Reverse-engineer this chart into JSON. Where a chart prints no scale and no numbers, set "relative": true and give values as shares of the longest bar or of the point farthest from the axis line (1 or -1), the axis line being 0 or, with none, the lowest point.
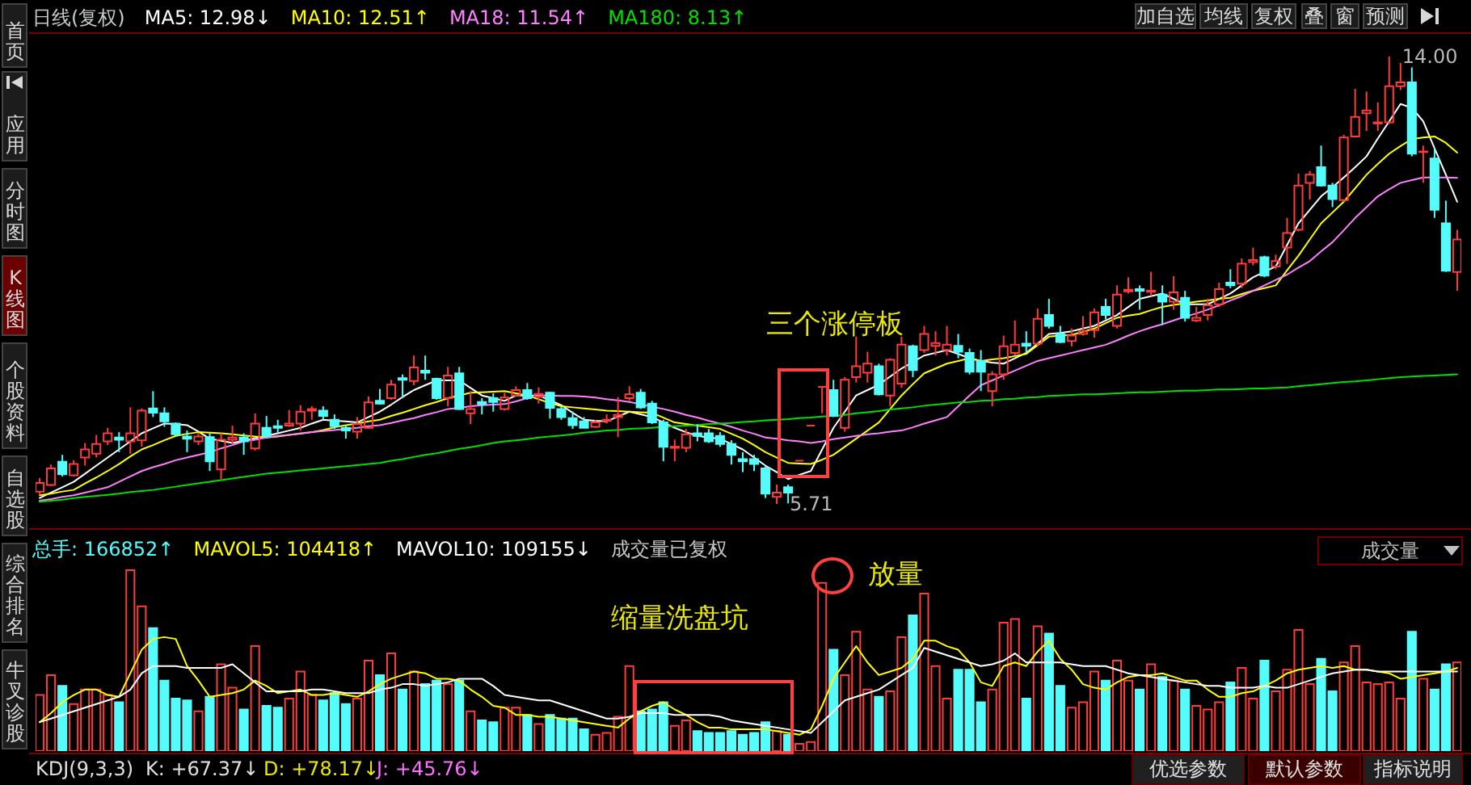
{
  "chart_data": [
    {
      "type": "candlestick",
      "title": "日线(复权)",
      "categories": [
        null,
        null,
        null,
        null,
        null,
        null,
        null,
        null,
        null,
        null,
        null,
        null,
        null,
        null,
        null,
        null,
        null,
        null,
        null,
        null,
        null,
        null,
        null,
        null,
        null,
        null,
        null,
        null,
        null,
        null,
        null,
        null,
        null,
        null,
        null,
        null,
        null,
        null,
        null,
        null,
        null,
        null,
        null,
        null,
        null,
        null,
        null,
        null,
        null,
        null,
        null,
        null,
        null,
        null,
        null,
        null,
        null,
        null,
        null,
        null,
        null,
        null,
        null,
        null,
        null,
        null,
        null,
        null,
        null,
        null,
        null,
        null,
        null,
        null,
        null,
        null,
        null,
        null,
        null,
        null,
        null,
        null,
        null,
        null,
        null,
        null,
        null,
        null,
        null,
        null,
        null,
        null,
        null,
        null,
        null,
        null,
        null,
        null,
        null,
        null,
        null,
        null,
        null,
        null,
        null,
        null,
        null,
        null,
        null,
        null,
        null,
        null,
        null,
        null,
        null,
        null,
        null,
        null,
        null,
        null,
        null,
        null,
        null,
        null,
        null,
        null
      ],
      "ohlc": [
        [
          5.94,
          6.19,
          5.87,
          6.1
        ],
        [
          6.06,
          6.44,
          6.04,
          6.37
        ],
        [
          6.49,
          6.62,
          6.22,
          6.26
        ],
        [
          6.24,
          6.52,
          6.22,
          6.45
        ],
        [
          6.57,
          6.84,
          6.42,
          6.72
        ],
        [
          6.64,
          6.99,
          6.57,
          6.82
        ],
        [
          6.87,
          7.12,
          6.8,
          7.02
        ],
        [
          6.94,
          7.04,
          6.67,
          6.9
        ],
        [
          6.87,
          7.5,
          6.64,
          7.02
        ],
        [
          6.89,
          7.48,
          6.77,
          7.44
        ],
        [
          7.48,
          7.8,
          7.32,
          7.4
        ],
        [
          7.39,
          7.5,
          7.14,
          7.24
        ],
        [
          7.2,
          7.22,
          6.97,
          7.0
        ],
        [
          6.96,
          7.07,
          6.67,
          6.92
        ],
        [
          6.87,
          7.02,
          6.8,
          6.96
        ],
        [
          6.95,
          7.02,
          6.32,
          6.5
        ],
        [
          6.35,
          7.02,
          6.17,
          6.9
        ],
        [
          6.9,
          7.16,
          6.82,
          6.94
        ],
        [
          6.94,
          7.02,
          6.62,
          6.87
        ],
        [
          6.74,
          7.39,
          6.7,
          7.2
        ],
        [
          7.12,
          7.34,
          6.94,
          6.97
        ],
        [
          7.15,
          7.27,
          7.02,
          7.12
        ],
        [
          7.16,
          7.45,
          7.14,
          7.2
        ],
        [
          7.2,
          7.54,
          7.07,
          7.42
        ],
        [
          7.44,
          7.52,
          7.27,
          7.47
        ],
        [
          7.44,
          7.52,
          7.27,
          7.34
        ],
        [
          7.27,
          7.37,
          7.1,
          7.15
        ],
        [
          7.12,
          7.17,
          6.92,
          7.07
        ],
        [
          7.05,
          7.32,
          6.92,
          7.19
        ],
        [
          7.12,
          7.7,
          7.1,
          7.59
        ],
        [
          7.62,
          7.84,
          7.55,
          7.57
        ],
        [
          7.67,
          8.01,
          7.64,
          7.92
        ],
        [
          8.04,
          8.11,
          7.67,
          8.01
        ],
        [
          7.99,
          8.46,
          7.91,
          8.24
        ],
        [
          8.18,
          8.46,
          8.01,
          8.14
        ],
        [
          8.03,
          8.05,
          7.64,
          7.67
        ],
        [
          7.67,
          8.25,
          7.52,
          8.09
        ],
        [
          8.13,
          8.25,
          7.45,
          7.47
        ],
        [
          7.39,
          7.8,
          7.19,
          7.47
        ],
        [
          7.6,
          7.67,
          7.37,
          7.56
        ],
        [
          7.67,
          7.76,
          7.42,
          7.6
        ],
        [
          7.47,
          7.77,
          7.44,
          7.68
        ],
        [
          7.72,
          7.89,
          7.7,
          7.82
        ],
        [
          7.82,
          7.95,
          7.64,
          7.67
        ],
        [
          7.7,
          7.87,
          7.57,
          7.75
        ],
        [
          7.77,
          7.79,
          7.29,
          7.49
        ],
        [
          7.47,
          7.52,
          7.27,
          7.32
        ],
        [
          7.3,
          7.42,
          7.1,
          7.17
        ],
        [
          7.24,
          7.32,
          7.12,
          7.12
        ],
        [
          7.14,
          7.26,
          7.12,
          7.22
        ],
        [
          7.25,
          7.37,
          7.2,
          7.27
        ],
        [
          7.32,
          7.69,
          6.95,
          7.36
        ],
        [
          7.67,
          7.89,
          7.62,
          7.74
        ],
        [
          7.77,
          7.84,
          7.47,
          7.5
        ],
        [
          7.57,
          7.62,
          7.19,
          7.22
        ],
        [
          7.22,
          7.27,
          6.5,
          6.77
        ],
        [
          6.75,
          6.9,
          6.5,
          6.77
        ],
        [
          6.75,
          7.1,
          6.67,
          7.0
        ],
        [
          7.02,
          7.19,
          6.87,
          6.97
        ],
        [
          7.02,
          7.1,
          6.84,
          6.87
        ],
        [
          6.97,
          7.04,
          6.77,
          6.82
        ],
        [
          6.82,
          6.89,
          6.44,
          6.62
        ],
        [
          6.54,
          6.67,
          6.3,
          6.5
        ],
        [
          6.54,
          6.62,
          6.32,
          6.45
        ],
        [
          6.37,
          6.42,
          5.82,
          5.9
        ],
        [
          5.84,
          6.07,
          5.71,
          5.92
        ],
        [
          6.02,
          6.07,
          5.72,
          5.92
        ],
        [
          6.51,
          6.51,
          6.51,
          6.51
        ],
        [
          7.16,
          7.16,
          7.16,
          7.16
        ],
        [
          7.88,
          7.88,
          7.39,
          7.88
        ],
        [
          7.82,
          8.01,
          7.32,
          7.34
        ],
        [
          7.12,
          8.06,
          7.05,
          8.01
        ],
        [
          8.06,
          8.81,
          7.96,
          8.26
        ],
        [
          8.14,
          8.53,
          7.96,
          8.31
        ],
        [
          8.26,
          8.31,
          7.72,
          7.74
        ],
        [
          7.72,
          8.41,
          7.52,
          8.38
        ],
        [
          7.94,
          8.81,
          7.86,
          8.66
        ],
        [
          8.63,
          8.66,
          8.06,
          8.19
        ],
        [
          8.56,
          9.01,
          8.51,
          8.86
        ],
        [
          8.64,
          8.91,
          8.46,
          8.69
        ],
        [
          8.56,
          9.01,
          8.46,
          8.66
        ],
        [
          8.64,
          8.86,
          8.41,
          8.53
        ],
        [
          8.51,
          8.59,
          8.11,
          8.16
        ],
        [
          8.36,
          8.56,
          7.8,
          8.16
        ],
        [
          7.8,
          8.17,
          7.52,
          8.11
        ],
        [
          8.11,
          8.83,
          8.01,
          8.63
        ],
        [
          8.51,
          9.11,
          8.46,
          8.66
        ],
        [
          8.68,
          8.91,
          8.51,
          8.64
        ],
        [
          8.68,
          9.33,
          8.64,
          9.14
        ],
        [
          9.21,
          9.51,
          8.96,
          9.01
        ],
        [
          8.86,
          9.01,
          8.69,
          8.71
        ],
        [
          8.73,
          8.96,
          8.63,
          8.83
        ],
        [
          8.86,
          9.19,
          8.83,
          8.91
        ],
        [
          8.93,
          9.33,
          8.79,
          9.26
        ],
        [
          9.36,
          9.51,
          9.13,
          9.21
        ],
        [
          9.01,
          9.76,
          8.96,
          9.59
        ],
        [
          9.65,
          9.91,
          9.61,
          9.68
        ],
        [
          9.69,
          9.76,
          9.31,
          9.66
        ],
        [
          9.64,
          10.01,
          9.56,
          9.66
        ],
        [
          9.59,
          9.76,
          9.03,
          9.46
        ],
        [
          9.46,
          9.93,
          9.31,
          9.63
        ],
        [
          9.53,
          9.66,
          9.09,
          9.16
        ],
        [
          9.11,
          9.36,
          9.08,
          9.16
        ],
        [
          9.21,
          9.51,
          9.11,
          9.39
        ],
        [
          9.41,
          9.81,
          9.36,
          9.69
        ],
        [
          9.81,
          10.06,
          9.71,
          9.76
        ],
        [
          9.79,
          10.26,
          9.71,
          10.16
        ],
        [
          10.19,
          10.46,
          10.13,
          10.23
        ],
        [
          10.28,
          10.31,
          9.91,
          9.94
        ],
        [
          10.11,
          10.33,
          10.06,
          10.21
        ],
        [
          10.46,
          11.01,
          10.16,
          10.73
        ],
        [
          10.79,
          11.83,
          10.76,
          11.61
        ],
        [
          11.66,
          11.88,
          11.35,
          11.81
        ],
        [
          11.95,
          12.35,
          11.59,
          11.61
        ],
        [
          11.61,
          11.66,
          11.21,
          11.36
        ],
        [
          11.34,
          12.55,
          11.31,
          12.5
        ],
        [
          12.52,
          13.4,
          12.5,
          12.88
        ],
        [
          12.95,
          13.35,
          12.62,
          13.0
        ],
        [
          12.76,
          13.15,
          12.62,
          12.78
        ],
        [
          12.78,
          14.0,
          12.75,
          13.45
        ],
        [
          13.45,
          13.88,
          13.38,
          13.52
        ],
        [
          13.52,
          13.8,
          12.15,
          12.2
        ],
        [
          12.23,
          12.35,
          11.66,
          12.24
        ],
        [
          12.11,
          12.3,
          11.01,
          11.16
        ],
        [
          10.91,
          11.33,
          10.01,
          10.03
        ],
        [
          10.01,
          10.79,
          9.66,
          10.61
        ]
      ],
      "series": [
        {
          "name": "MA5: 12.98↓",
          "type": "line",
          "color": "#ffffff",
          "values": [
            5.82,
            5.92,
            6.02,
            6.12,
            6.27,
            6.42,
            6.57,
            6.72,
            6.87,
            7.02,
            7.11,
            7.2,
            7.19,
            7.17,
            7.05,
            6.92,
            6.88,
            6.84,
            6.88,
            6.93,
            6.97,
            7.02,
            7.07,
            7.12,
            7.2,
            7.27,
            7.25,
            7.24,
            7.22,
            7.32,
            7.42,
            7.55,
            7.69,
            7.82,
            7.91,
            8.0,
            8.0,
            8.0,
            7.86,
            7.72,
            7.67,
            7.62,
            7.72,
            7.72,
            7.72,
            7.63,
            7.54,
            7.4,
            7.27,
            7.25,
            7.24,
            7.33,
            7.42,
            7.37,
            7.32,
            7.22,
            7.12,
            7.04,
            6.97,
            6.94,
            6.92,
            6.82,
            6.72,
            6.57,
            6.42,
            6.3,
            6.17,
            6.25,
            6.32,
            6.72,
            7.12,
            7.42,
            7.72,
            7.82,
            7.92,
            8.07,
            8.22,
            8.34,
            8.46,
            8.51,
            8.56,
            8.49,
            8.41,
            8.36,
            8.33,
            8.31,
            8.41,
            8.51,
            8.68,
            8.86,
            8.88,
            8.91,
            8.96,
            9.01,
            9.11,
            9.21,
            9.36,
            9.51,
            9.56,
            9.61,
            9.51,
            9.41,
            9.41,
            9.41,
            9.51,
            9.61,
            9.76,
            9.91,
            10.01,
            10.11,
            10.51,
            10.91,
            11.16,
            11.41,
            11.58,
            11.76,
            11.95,
            12.15,
            12.48,
            12.8,
            13.12,
            13.05,
            12.8,
            12.3,
            11.81,
            11.31
          ]
        },
        {
          "name": "MA10: 12.51↑",
          "type": "line",
          "color": "#ffff00",
          "values": [
            5.87,
            5.9,
            5.94,
            5.97,
            6.09,
            6.2,
            6.32,
            6.45,
            6.59,
            6.72,
            6.8,
            6.89,
            6.97,
            7.01,
            7.04,
            7.03,
            7.02,
            7.0,
            6.98,
            6.96,
            6.94,
            6.96,
            6.99,
            7.01,
            7.04,
            7.08,
            7.13,
            7.17,
            7.2,
            7.24,
            7.27,
            7.34,
            7.4,
            7.47,
            7.54,
            7.6,
            7.67,
            7.72,
            7.77,
            7.78,
            7.79,
            7.8,
            7.76,
            7.72,
            7.65,
            7.58,
            7.52,
            7.5,
            7.48,
            7.46,
            7.44,
            7.43,
            7.42,
            7.41,
            7.4,
            7.31,
            7.22,
            7.19,
            7.16,
            7.13,
            7.1,
            7.01,
            6.92,
            6.8,
            6.67,
            6.57,
            6.47,
            6.46,
            6.45,
            6.53,
            6.62,
            6.77,
            6.92,
            7.07,
            7.22,
            7.47,
            7.72,
            7.93,
            8.13,
            8.22,
            8.31,
            8.36,
            8.41,
            8.36,
            8.39,
            8.41,
            8.45,
            8.49,
            8.65,
            8.81,
            8.83,
            8.84,
            8.9,
            8.96,
            9.06,
            9.16,
            9.2,
            9.23,
            9.3,
            9.36,
            9.4,
            9.43,
            9.46,
            9.48,
            9.51,
            9.53,
            9.6,
            9.66,
            9.71,
            9.76,
            10.04,
            10.31,
            10.61,
            10.91,
            11.11,
            11.31,
            11.56,
            11.81,
            12.01,
            12.2,
            12.34,
            12.47,
            12.5,
            12.52,
            12.4,
            12.22
          ]
        },
        {
          "name": "MA18: 11.54↑",
          "type": "line",
          "color": "#ff80ff",
          "values": [
            5.77,
            5.8,
            5.84,
            5.87,
            5.92,
            5.97,
            6.02,
            6.12,
            6.22,
            6.32,
            6.39,
            6.45,
            6.52,
            6.57,
            6.62,
            6.67,
            6.74,
            6.8,
            6.87,
            6.9,
            6.94,
            6.97,
            6.99,
            7.02,
            7.04,
            7.06,
            7.08,
            7.1,
            7.12,
            7.15,
            7.17,
            7.21,
            7.26,
            7.3,
            7.36,
            7.41,
            7.47,
            7.49,
            7.52,
            7.54,
            7.55,
            7.56,
            7.61,
            7.67,
            7.72,
            7.72,
            7.71,
            7.71,
            7.7,
            7.68,
            7.65,
            7.63,
            7.6,
            7.56,
            7.51,
            7.47,
            7.42,
            7.36,
            7.31,
            7.25,
            7.2,
            7.14,
            7.07,
            7.01,
            6.94,
            6.92,
            6.89,
            6.87,
            6.84,
            6.87,
            6.91,
            6.94,
            6.97,
            7.0,
            7.02,
            7.05,
            7.07,
            7.13,
            7.2,
            7.26,
            7.32,
            7.52,
            7.72,
            7.91,
            8.0,
            8.09,
            8.18,
            8.27,
            8.36,
            8.41,
            8.46,
            8.51,
            8.56,
            8.61,
            8.66,
            8.74,
            8.83,
            8.91,
            8.98,
            9.04,
            9.11,
            9.18,
            9.24,
            9.31,
            9.39,
            9.48,
            9.56,
            9.66,
            9.76,
            9.86,
            9.96,
            10.09,
            10.21,
            10.39,
            10.56,
            10.78,
            11.01,
            11.21,
            11.41,
            11.54,
            11.66,
            11.71,
            11.76,
            11.76,
            11.76,
            11.75
          ]
        },
        {
          "name": "MA180: 8.13↑",
          "type": "line",
          "color": "#00e000",
          "values": [
            5.75,
            5.77,
            5.79,
            5.82,
            5.84,
            5.86,
            5.88,
            5.9,
            5.93,
            5.95,
            5.97,
            6.0,
            6.03,
            6.06,
            6.09,
            6.12,
            6.15,
            6.18,
            6.21,
            6.24,
            6.27,
            6.29,
            6.31,
            6.33,
            6.35,
            6.37,
            6.39,
            6.41,
            6.43,
            6.45,
            6.47,
            6.51,
            6.54,
            6.58,
            6.62,
            6.65,
            6.69,
            6.73,
            6.76,
            6.8,
            6.84,
            6.87,
            6.89,
            6.91,
            6.94,
            6.96,
            6.98,
            7.0,
            7.03,
            7.05,
            7.07,
            7.08,
            7.1,
            7.11,
            7.12,
            7.14,
            7.15,
            7.16,
            7.17,
            7.19,
            7.2,
            7.21,
            7.23,
            7.24,
            7.26,
            7.27,
            7.28,
            7.3,
            7.31,
            7.33,
            7.34,
            7.36,
            7.39,
            7.41,
            7.43,
            7.46,
            7.48,
            7.5,
            7.53,
            7.55,
            7.57,
            7.59,
            7.6,
            7.62,
            7.63,
            7.65,
            7.66,
            7.68,
            7.69,
            7.71,
            7.72,
            7.73,
            7.74,
            7.74,
            7.75,
            7.76,
            7.77,
            7.78,
            7.78,
            7.79,
            7.8,
            7.81,
            7.81,
            7.82,
            7.83,
            7.83,
            7.84,
            7.85,
            7.85,
            7.86,
            7.87,
            7.89,
            7.91,
            7.93,
            7.95,
            7.97,
            7.98,
            8.0,
            8.02,
            8.04,
            8.06,
            8.07,
            8.08,
            8.09,
            8.1,
            8.11
          ]
        }
      ],
      "annotations": [
        "14.00",
        "5.71",
        "三个涨停板"
      ]
    },
    {
      "type": "bar",
      "relative": true,
      "categories": [
        null,
        null,
        null,
        null,
        null,
        null,
        null,
        null,
        null,
        null,
        null,
        null,
        null,
        null,
        null,
        null,
        null,
        null,
        null,
        null,
        null,
        null,
        null,
        null,
        null,
        null,
        null,
        null,
        null,
        null,
        null,
        null,
        null,
        null,
        null,
        null,
        null,
        null,
        null,
        null,
        null,
        null,
        null,
        null,
        null,
        null,
        null,
        null,
        null,
        null,
        null,
        null,
        null,
        null,
        null,
        null,
        null,
        null,
        null,
        null,
        null,
        null,
        null,
        null,
        null,
        null,
        null,
        null,
        null,
        null,
        null,
        null,
        null,
        null,
        null,
        null,
        null,
        null,
        null,
        null,
        null,
        null,
        null,
        null,
        null,
        null,
        null,
        null,
        null,
        null,
        null,
        null,
        null,
        null,
        null,
        null,
        null,
        null,
        null,
        null,
        null,
        null,
        null,
        null,
        null,
        null,
        null,
        null,
        null,
        null,
        null,
        null,
        null,
        null,
        null,
        null,
        null,
        null,
        null,
        null,
        null,
        null,
        null,
        null,
        null,
        null
      ],
      "values": [
        0.31,
        0.42,
        0.36,
        0.26,
        0.34,
        0.34,
        0.31,
        0.27,
        1,
        0.8,
        0.68,
        0.39,
        0.29,
        0.28,
        0.22,
        0.3,
        0.48,
        0.35,
        0.23,
        0.58,
        0.25,
        0.24,
        0.29,
        0.44,
        0.31,
        0.28,
        0.32,
        0.26,
        0.29,
        0.5,
        0.42,
        0.54,
        0.34,
        0.44,
        0.37,
        0.39,
        0.37,
        0.39,
        0.22,
        0.17,
        0.16,
        0.24,
        0.24,
        0.2,
        0.15,
        0.2,
        0.18,
        0.18,
        0.12,
        0.09,
        0.1,
        0.19,
        0.47,
        0.22,
        0.23,
        0.27,
        0.14,
        0.17,
        0.11,
        0.1,
        0.1,
        0.11,
        0.09,
        0.1,
        0.16,
        0.11,
        0.09,
        0.04,
        0.05,
        0.93,
        0.56,
        0.42,
        0.66,
        0.34,
        0.3,
        0.33,
        0.63,
        0.75,
        0.87,
        0.47,
        0.29,
        0.45,
        0.45,
        0.27,
        0.34,
        0.71,
        0.73,
        0.29,
        0.69,
        0.65,
        0.36,
        0.24,
        0.27,
        0.44,
        0.39,
        0.5,
        0.39,
        0.34,
        0.48,
        0.41,
        0.39,
        0.34,
        0.25,
        0.23,
        0.27,
        0.38,
        0.46,
        0.29,
        0.5,
        0.33,
        0.45,
        0.67,
        0.37,
        0.51,
        0.33,
        0.49,
        0.58,
        0.38,
        0.37,
        0.38,
        0.29,
        0.66,
        0.4,
        0.34,
        0.48,
        0.49
      ],
      "colors": [
        "#ff3c3c",
        "#ff3c3c",
        "#54fcfc",
        "#ff3c3c",
        "#ff3c3c",
        "#ff3c3c",
        "#ff3c3c",
        "#54fcfc",
        "#ff3c3c",
        "#ff3c3c",
        "#54fcfc",
        "#54fcfc",
        "#54fcfc",
        "#54fcfc",
        "#ff3c3c",
        "#54fcfc",
        "#ff3c3c",
        "#ff3c3c",
        "#54fcfc",
        "#ff3c3c",
        "#54fcfc",
        "#54fcfc",
        "#ff3c3c",
        "#ff3c3c",
        "#ff3c3c",
        "#54fcfc",
        "#54fcfc",
        "#54fcfc",
        "#ff3c3c",
        "#ff3c3c",
        "#54fcfc",
        "#ff3c3c",
        "#54fcfc",
        "#ff3c3c",
        "#54fcfc",
        "#54fcfc",
        "#ff3c3c",
        "#54fcfc",
        "#ff3c3c",
        "#54fcfc",
        "#54fcfc",
        "#ff3c3c",
        "#ff3c3c",
        "#54fcfc",
        "#ff3c3c",
        "#54fcfc",
        "#54fcfc",
        "#54fcfc",
        "#54fcfc",
        "#ff3c3c",
        "#ff3c3c",
        "#ff3c3c",
        "#ff3c3c",
        "#54fcfc",
        "#54fcfc",
        "#54fcfc",
        "#ff3c3c",
        "#ff3c3c",
        "#54fcfc",
        "#54fcfc",
        "#54fcfc",
        "#54fcfc",
        "#54fcfc",
        "#54fcfc",
        "#54fcfc",
        "#ff3c3c",
        "#54fcfc",
        "#ff3c3c",
        "#ff3c3c",
        "#ff3c3c",
        "#54fcfc",
        "#ff3c3c",
        "#ff3c3c",
        "#ff3c3c",
        "#54fcfc",
        "#ff3c3c",
        "#ff3c3c",
        "#54fcfc",
        "#ff3c3c",
        "#ff3c3c",
        "#ff3c3c",
        "#54fcfc",
        "#54fcfc",
        "#54fcfc",
        "#ff3c3c",
        "#ff3c3c",
        "#ff3c3c",
        "#54fcfc",
        "#ff3c3c",
        "#54fcfc",
        "#54fcfc",
        "#ff3c3c",
        "#ff3c3c",
        "#ff3c3c",
        "#54fcfc",
        "#ff3c3c",
        "#ff3c3c",
        "#54fcfc",
        "#ff3c3c",
        "#54fcfc",
        "#ff3c3c",
        "#54fcfc",
        "#ff3c3c",
        "#ff3c3c",
        "#ff3c3c",
        "#54fcfc",
        "#ff3c3c",
        "#ff3c3c",
        "#54fcfc",
        "#ff3c3c",
        "#ff3c3c",
        "#ff3c3c",
        "#ff3c3c",
        "#54fcfc",
        "#54fcfc",
        "#ff3c3c",
        "#ff3c3c",
        "#ff3c3c",
        "#ff3c3c",
        "#ff3c3c",
        "#ff3c3c",
        "#54fcfc",
        "#ff3c3c",
        "#54fcfc",
        "#54fcfc",
        "#ff3c3c"
      ],
      "series": [
        {
          "name": "MAVOL5: 104418↑",
          "type": "line",
          "color": "#ffff00",
          "values": [
            0.16,
            0.21,
            0.27,
            0.31,
            0.34,
            0.34,
            0.31,
            0.3,
            0.43,
            0.56,
            0.62,
            0.63,
            0.62,
            0.47,
            0.39,
            0.3,
            0.31,
            0.32,
            0.34,
            0.39,
            0.36,
            0.32,
            0.33,
            0.34,
            0.31,
            0.31,
            0.32,
            0.31,
            0.3,
            0.33,
            0.37,
            0.4,
            0.42,
            0.44,
            0.43,
            0.4,
            0.4,
            0.39,
            0.34,
            0.3,
            0.25,
            0.24,
            0.2,
            0.2,
            0.19,
            0.19,
            0.18,
            0.17,
            0.16,
            0.15,
            0.14,
            0.13,
            0.18,
            0.22,
            0.25,
            0.27,
            0.23,
            0.2,
            0.16,
            0.13,
            0.13,
            0.12,
            0.12,
            0.12,
            0.12,
            0.11,
            0.1,
            0.09,
            0.12,
            0.25,
            0.4,
            0.49,
            0.58,
            0.49,
            0.42,
            0.44,
            0.46,
            0.51,
            0.61,
            0.61,
            0.58,
            0.56,
            0.49,
            0.38,
            0.36,
            0.47,
            0.49,
            0.47,
            0.55,
            0.61,
            0.51,
            0.45,
            0.37,
            0.35,
            0.34,
            0.38,
            0.41,
            0.42,
            0.42,
            0.43,
            0.41,
            0.39,
            0.39,
            0.34,
            0.3,
            0.3,
            0.32,
            0.33,
            0.36,
            0.39,
            0.43,
            0.45,
            0.46,
            0.47,
            0.46,
            0.47,
            0.45,
            0.45,
            0.44,
            0.43,
            0.4,
            0.41,
            0.42,
            0.43,
            0.44,
            0.46
          ]
        },
        {
          "name": "MAVOL10: 109155↓",
          "type": "line",
          "color": "#ffffff",
          "values": [
            0.16,
            0.18,
            0.2,
            0.22,
            0.24,
            0.26,
            0.28,
            0.3,
            0.34,
            0.43,
            0.47,
            0.47,
            0.47,
            0.46,
            0.46,
            0.46,
            0.46,
            0.48,
            0.43,
            0.38,
            0.33,
            0.33,
            0.33,
            0.33,
            0.34,
            0.34,
            0.33,
            0.32,
            0.32,
            0.32,
            0.34,
            0.35,
            0.37,
            0.37,
            0.36,
            0.37,
            0.38,
            0.4,
            0.4,
            0.4,
            0.36,
            0.31,
            0.3,
            0.29,
            0.28,
            0.28,
            0.26,
            0.24,
            0.22,
            0.2,
            0.18,
            0.18,
            0.19,
            0.21,
            0.21,
            0.21,
            0.2,
            0.2,
            0.2,
            0.2,
            0.19,
            0.17,
            0.16,
            0.15,
            0.14,
            0.13,
            0.12,
            0.11,
            0.1,
            0.16,
            0.22,
            0.28,
            0.3,
            0.32,
            0.34,
            0.38,
            0.42,
            0.46,
            0.57,
            0.55,
            0.53,
            0.51,
            0.49,
            0.47,
            0.48,
            0.5,
            0.54,
            0.49,
            0.49,
            0.49,
            0.49,
            0.48,
            0.47,
            0.47,
            0.47,
            0.45,
            0.43,
            0.42,
            0.41,
            0.4,
            0.39,
            0.38,
            0.37,
            0.36,
            0.36,
            0.35,
            0.35,
            0.35,
            0.36,
            0.35,
            0.35,
            0.37,
            0.39,
            0.41,
            0.43,
            0.44,
            0.45,
            0.45,
            0.44,
            0.44,
            0.44,
            0.44,
            0.44,
            0.44,
            0.44,
            0.44
          ]
        }
      ],
      "annotations": [
        "总手: 166852↑",
        "成交量已复权",
        "缩量洗盘坑",
        "放量"
      ]
    },
    {
      "type": "other",
      "annotations": [
        "首页",
        "应用",
        "分时图",
        "K线图",
        "个股资料",
        "自选股",
        "综合排名",
        "牛叉诊股",
        "加自选",
        "均线",
        "复权",
        "叠",
        "窗",
        "预测",
        "成交量",
        "KDJ(9,3,3)",
        "K: +67.37↓",
        "D: +78.17↓",
        "J: +45.76↓",
        "优选参数",
        "默认参数",
        "指标说明"
      ]
    }
  ]
}
